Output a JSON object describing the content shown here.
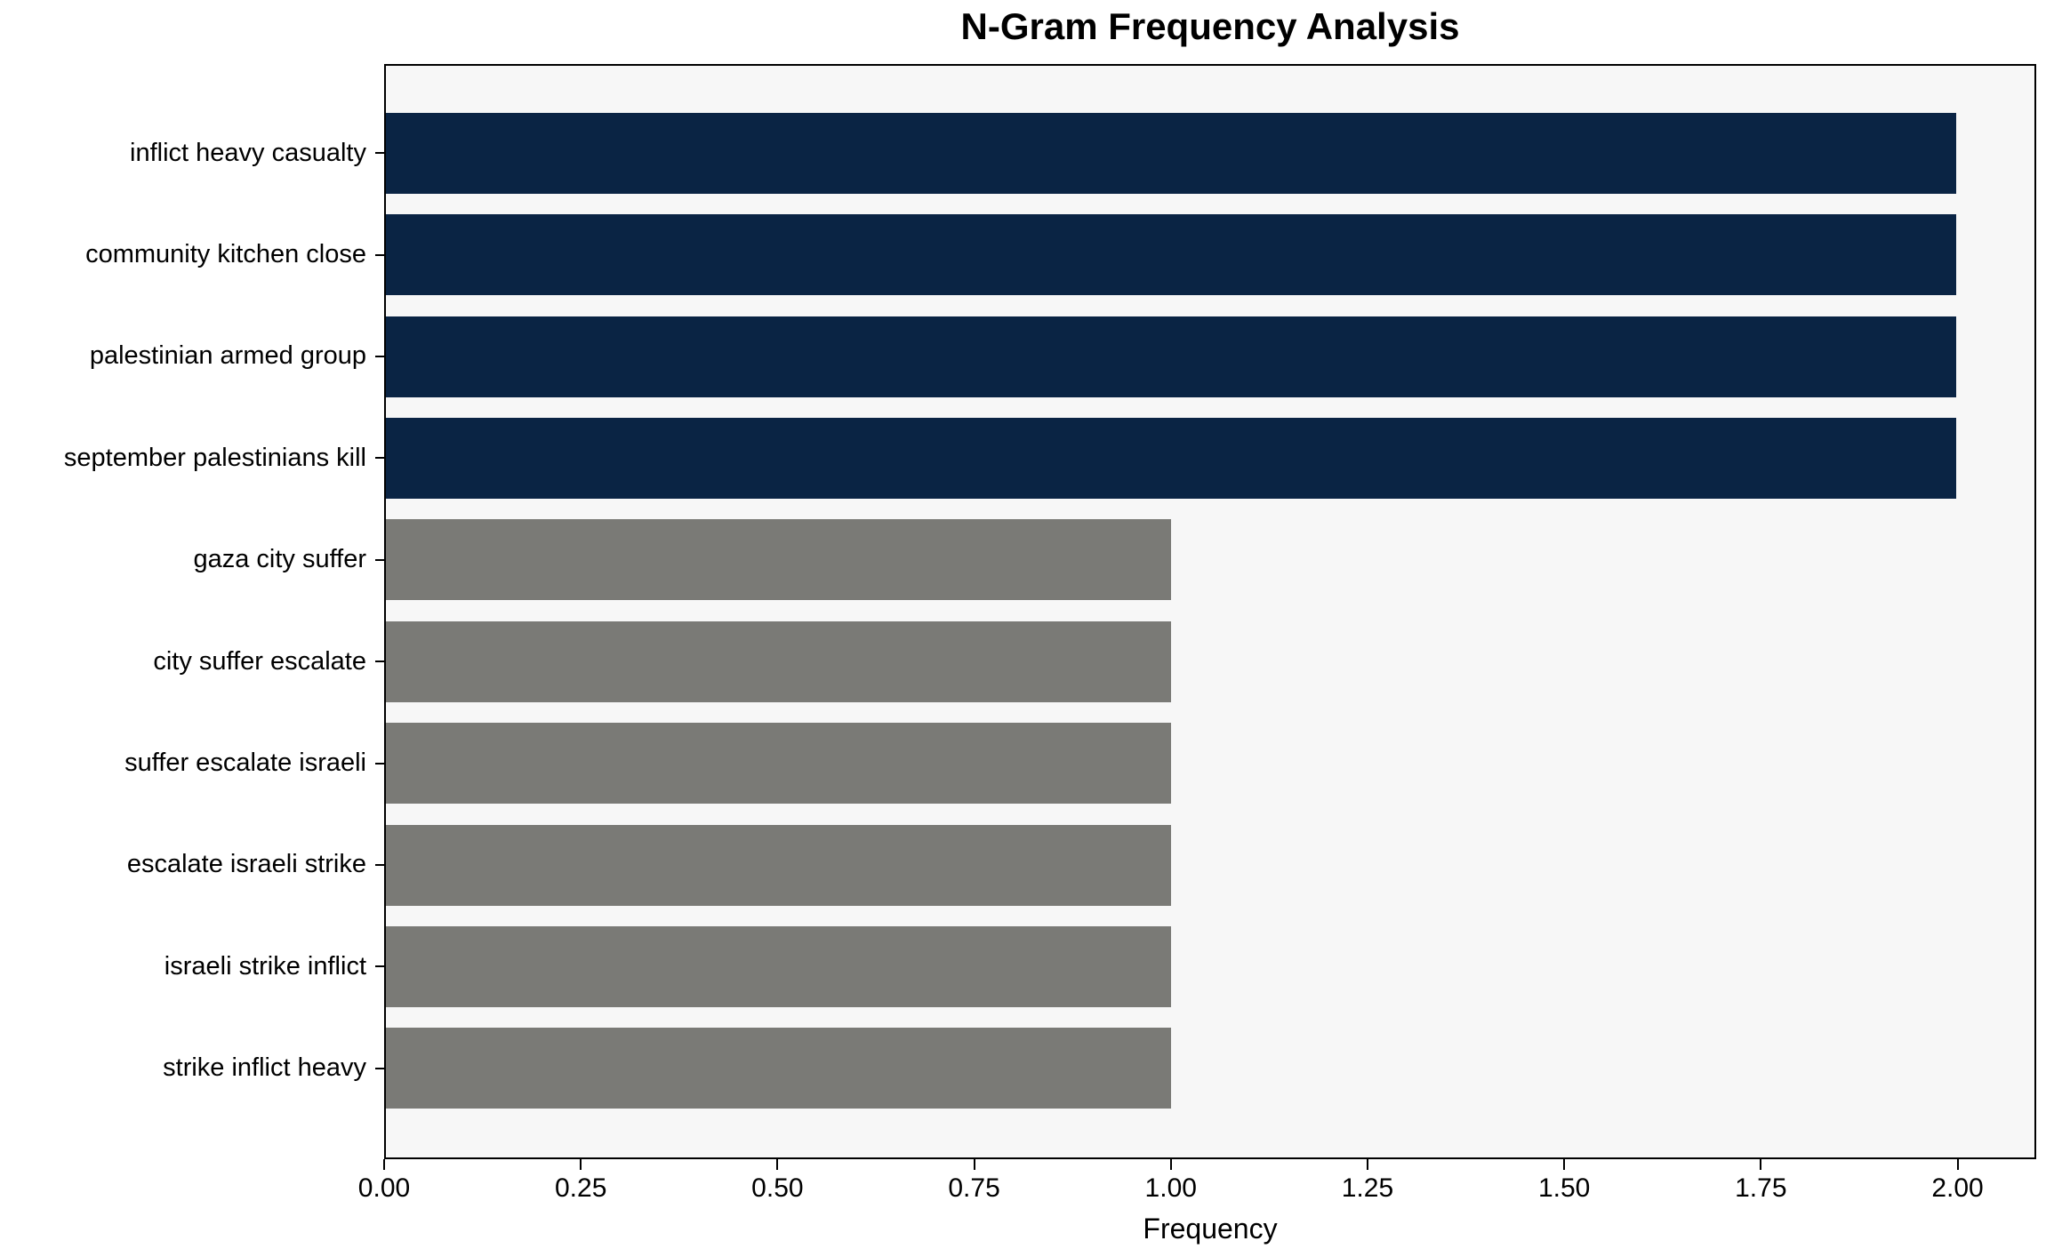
{
  "chart_data": {
    "type": "bar",
    "orientation": "horizontal",
    "title": "N-Gram Frequency Analysis",
    "xlabel": "Frequency",
    "ylabel": "",
    "categories": [
      "inflict heavy casualty",
      "community kitchen close",
      "palestinian armed group",
      "september palestinians kill",
      "gaza city suffer",
      "city suffer escalate",
      "suffer escalate israeli",
      "escalate israeli strike",
      "israeli strike inflict",
      "strike inflict heavy"
    ],
    "values": [
      2,
      2,
      2,
      2,
      1,
      1,
      1,
      1,
      1,
      1
    ],
    "bar_colors": [
      "#0a2444",
      "#0a2444",
      "#0a2444",
      "#0a2444",
      "#7a7a76",
      "#7a7a76",
      "#7a7a76",
      "#7a7a76",
      "#7a7a76",
      "#7a7a76"
    ],
    "xlim": [
      0,
      2.1
    ],
    "xticks": [
      0,
      0.25,
      0.5,
      0.75,
      1.0,
      1.25,
      1.5,
      1.75,
      2.0
    ],
    "xtick_labels": [
      "0.00",
      "0.25",
      "0.50",
      "0.75",
      "1.00",
      "1.25",
      "1.50",
      "1.75",
      "2.00"
    ],
    "grid": false,
    "legend": false,
    "colors": {
      "plot_background": "#f7f7f7",
      "figure_background": "#ffffff",
      "axis_line": "#000000",
      "text": "#000000"
    }
  }
}
